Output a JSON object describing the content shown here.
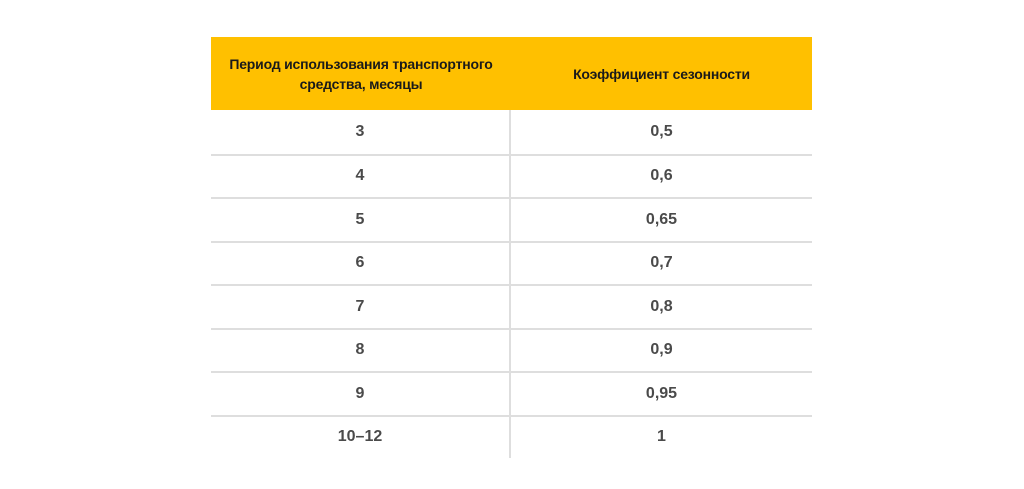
{
  "colors": {
    "header_bg": "#FFC000",
    "grid": "#DEDEDE",
    "text": "#4A4A4A"
  },
  "table": {
    "headers": [
      "Период использования транспортного средства, месяцы",
      "Коэффициент сезонности"
    ],
    "rows": [
      [
        "3",
        "0,5"
      ],
      [
        "4",
        "0,6"
      ],
      [
        "5",
        "0,65"
      ],
      [
        "6",
        "0,7"
      ],
      [
        "7",
        "0,8"
      ],
      [
        "8",
        "0,9"
      ],
      [
        "9",
        "0,95"
      ],
      [
        "10–12",
        "1"
      ]
    ]
  }
}
